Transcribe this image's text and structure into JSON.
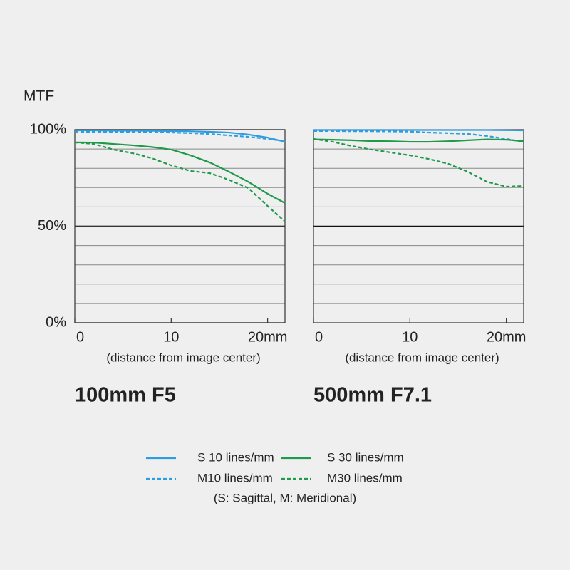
{
  "chart_data": [
    {
      "type": "line",
      "title": "100mm F5",
      "ylabel": "MTF",
      "xlabel": "(distance from image center)",
      "x": [
        0,
        2,
        4,
        6,
        8,
        10,
        12,
        14,
        16,
        18,
        20,
        21.8
      ],
      "xlim": [
        0,
        21.8
      ],
      "xticks": [
        0,
        10,
        {
          "value": 20,
          "label": "20mm"
        }
      ],
      "ylim": [
        0,
        100
      ],
      "yticks": [
        {
          "value": 0,
          "label": "0%"
        },
        {
          "value": 50,
          "label": "50%"
        },
        {
          "value": 100,
          "label": "100%"
        }
      ],
      "ygrid": [
        10,
        20,
        30,
        40,
        60,
        70,
        80,
        90
      ],
      "emphasis_y": 50,
      "series": [
        {
          "name": "S 10 lines/mm",
          "color": "#2b9de0",
          "dash": false,
          "values": [
            99.6,
            99.6,
            99.5,
            99.5,
            99.4,
            99.3,
            99.2,
            98.9,
            98.5,
            97.5,
            95.9,
            93.7
          ]
        },
        {
          "name": "M10 lines/mm",
          "color": "#2b9de0",
          "dash": true,
          "values": [
            98.9,
            98.9,
            98.9,
            98.8,
            98.7,
            98.5,
            98.2,
            97.8,
            97.0,
            96.3,
            95.2,
            94.1
          ]
        },
        {
          "name": "S 30 lines/mm",
          "color": "#1f9a4a",
          "dash": false,
          "values": [
            93.4,
            93.3,
            92.6,
            91.9,
            91.0,
            89.7,
            86.7,
            83.0,
            78.2,
            73.0,
            66.8,
            62.0
          ]
        },
        {
          "name": "M30 lines/mm",
          "color": "#1f9a4a",
          "dash": true,
          "values": [
            93.4,
            92.6,
            89.7,
            87.8,
            85.2,
            81.5,
            78.6,
            77.5,
            74.0,
            69.7,
            60.5,
            52.4
          ]
        }
      ]
    },
    {
      "type": "line",
      "title": "500mm F7.1",
      "xlabel": "(distance from image center)",
      "x": [
        0,
        2,
        4,
        6,
        8,
        10,
        12,
        14,
        16,
        18,
        20,
        21.8
      ],
      "xlim": [
        0,
        21.8
      ],
      "xticks": [
        0,
        10,
        {
          "value": 20,
          "label": "20mm"
        }
      ],
      "ylim": [
        0,
        100
      ],
      "ygrid": [
        10,
        20,
        30,
        40,
        60,
        70,
        80,
        90
      ],
      "emphasis_y": 50,
      "series": [
        {
          "color": "#2b9de0",
          "dash": false,
          "values": [
            99.8,
            99.8,
            99.8,
            99.8,
            99.8,
            99.8,
            99.8,
            99.8,
            99.8,
            99.8,
            99.7,
            99.6
          ]
        },
        {
          "color": "#2b9de0",
          "dash": true,
          "values": [
            99.3,
            99.3,
            99.2,
            99.2,
            99.1,
            99.0,
            98.5,
            98.2,
            97.8,
            96.7,
            95.2,
            93.7
          ]
        },
        {
          "color": "#1f9a4a",
          "dash": false,
          "values": [
            95.0,
            94.8,
            94.5,
            94.1,
            94.0,
            93.7,
            93.7,
            94.0,
            94.5,
            95.0,
            94.8,
            94.0
          ]
        },
        {
          "color": "#1f9a4a",
          "dash": true,
          "values": [
            95.2,
            93.7,
            91.5,
            89.7,
            88.2,
            86.7,
            84.8,
            82.3,
            78.2,
            73.0,
            70.5,
            70.8
          ]
        }
      ]
    }
  ],
  "legend": {
    "note": "(S: Sagittal, M: Meridional)"
  }
}
